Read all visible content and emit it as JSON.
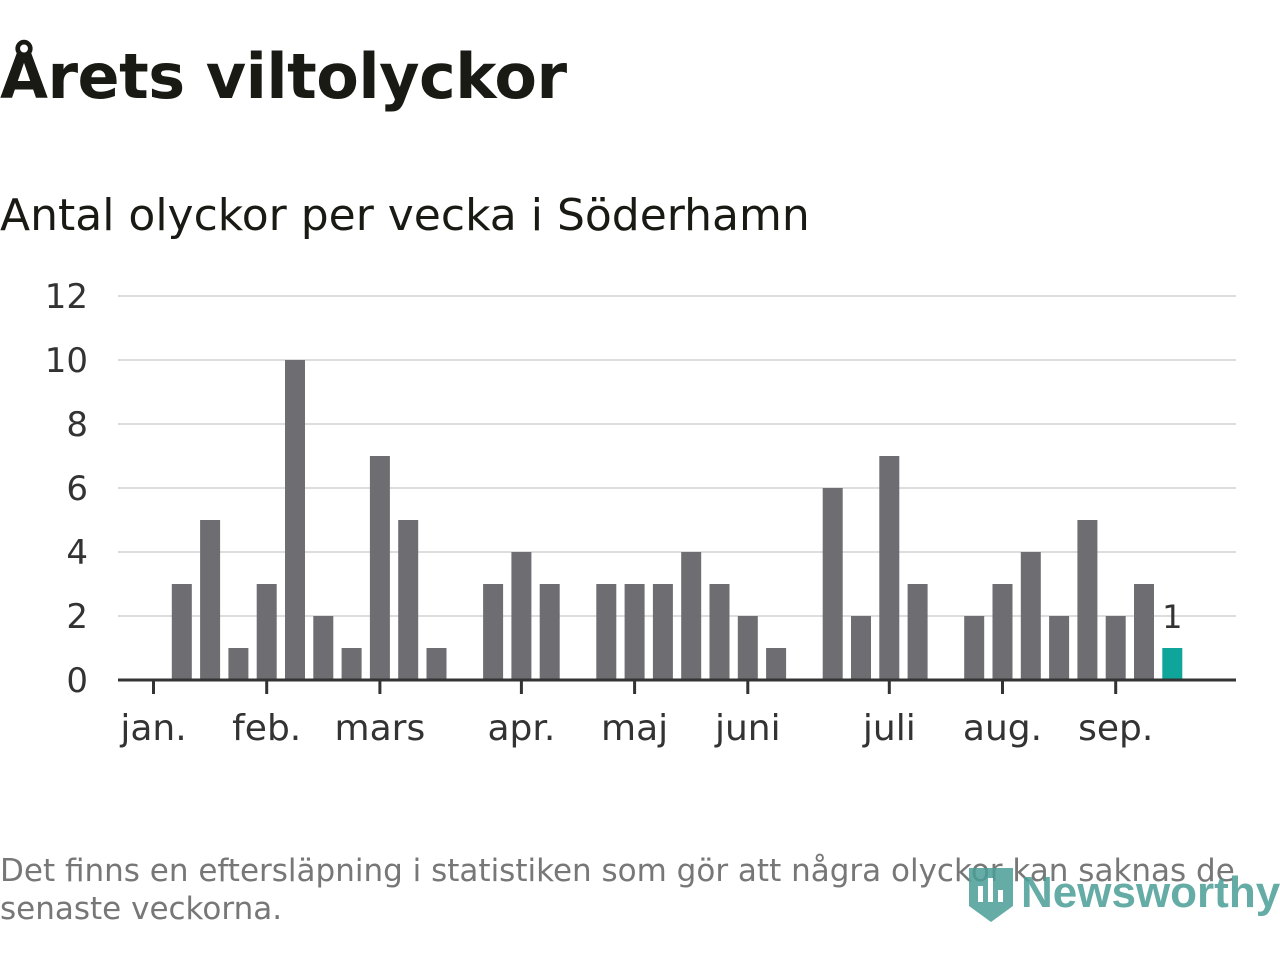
{
  "title": "Årets viltolyckor",
  "subtitle": "Antal olyckor per vecka i Söderhamn",
  "footnote": "Det finns en eftersläpning i statistiken som gör att några olyckor kan saknas de senaste veckorna.",
  "brand": "Newsworthy",
  "colors": {
    "bar": "#6e6d72",
    "highlight": "#10a59a",
    "grid": "#dddddd",
    "axis": "#333333",
    "brand": "#4a9e96"
  },
  "chart_data": {
    "type": "bar",
    "weeks": [
      1,
      2,
      3,
      4,
      5,
      6,
      7,
      8,
      9,
      10,
      11,
      12,
      13,
      14,
      15,
      16,
      17,
      18,
      19,
      20,
      21,
      22,
      23,
      24,
      25,
      26,
      27,
      28,
      29,
      30,
      31,
      32,
      33,
      34,
      35,
      36,
      37,
      38,
      39,
      40
    ],
    "values": [
      0,
      3,
      5,
      1,
      3,
      10,
      2,
      1,
      7,
      5,
      1,
      0,
      3,
      4,
      3,
      0,
      3,
      3,
      3,
      4,
      3,
      2,
      1,
      0,
      6,
      2,
      7,
      3,
      0,
      2,
      3,
      4,
      2,
      5,
      2,
      3,
      1,
      0,
      0,
      0
    ],
    "highlight_index": 36,
    "highlight_label": "1",
    "ylim": [
      0,
      12
    ],
    "yticks": [
      0,
      2,
      4,
      6,
      8,
      10,
      12
    ],
    "month_ticks": [
      {
        "label": "jan.",
        "week": 2
      },
      {
        "label": "feb.",
        "week": 6
      },
      {
        "label": "mars",
        "week": 10
      },
      {
        "label": "apr.",
        "week": 15
      },
      {
        "label": "maj",
        "week": 19
      },
      {
        "label": "juni",
        "week": 23
      },
      {
        "label": "juli",
        "week": 28
      },
      {
        "label": "aug.",
        "week": 32
      },
      {
        "label": "sep.",
        "week": 36
      }
    ],
    "grid": true,
    "legend": "none"
  }
}
